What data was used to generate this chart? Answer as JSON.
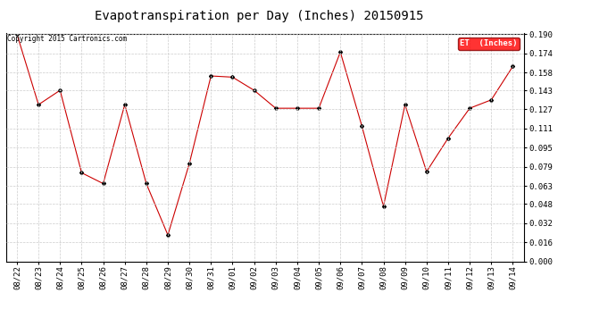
{
  "title": "Evapotranspiration per Day (Inches) 20150915",
  "copyright": "Copyright 2015 Cartronics.com",
  "legend_label": "ET  (Inches)",
  "legend_bg": "#ff0000",
  "legend_text_color": "#ffffff",
  "dates": [
    "08/22",
    "08/23",
    "08/24",
    "08/25",
    "08/26",
    "08/27",
    "08/28",
    "08/29",
    "08/30",
    "08/31",
    "09/01",
    "09/02",
    "09/03",
    "09/04",
    "09/05",
    "09/06",
    "09/07",
    "09/08",
    "09/09",
    "09/10",
    "09/11",
    "09/12",
    "09/13",
    "09/14"
  ],
  "values": [
    0.19,
    0.131,
    0.143,
    0.074,
    0.065,
    0.131,
    0.065,
    0.022,
    0.082,
    0.155,
    0.154,
    0.143,
    0.128,
    0.128,
    0.128,
    0.175,
    0.113,
    0.046,
    0.131,
    0.075,
    0.103,
    0.128,
    0.135,
    0.163
  ],
  "ylim": [
    0.0,
    0.19
  ],
  "yticks": [
    0.0,
    0.016,
    0.032,
    0.048,
    0.063,
    0.079,
    0.095,
    0.111,
    0.127,
    0.143,
    0.158,
    0.174,
    0.19
  ],
  "line_color": "#cc0000",
  "marker": "D",
  "marker_color": "#000000",
  "marker_size": 2,
  "bg_color": "#ffffff",
  "grid_color": "#cccccc",
  "title_fontsize": 10,
  "tick_fontsize": 6.5,
  "copyright_fontsize": 5.5
}
